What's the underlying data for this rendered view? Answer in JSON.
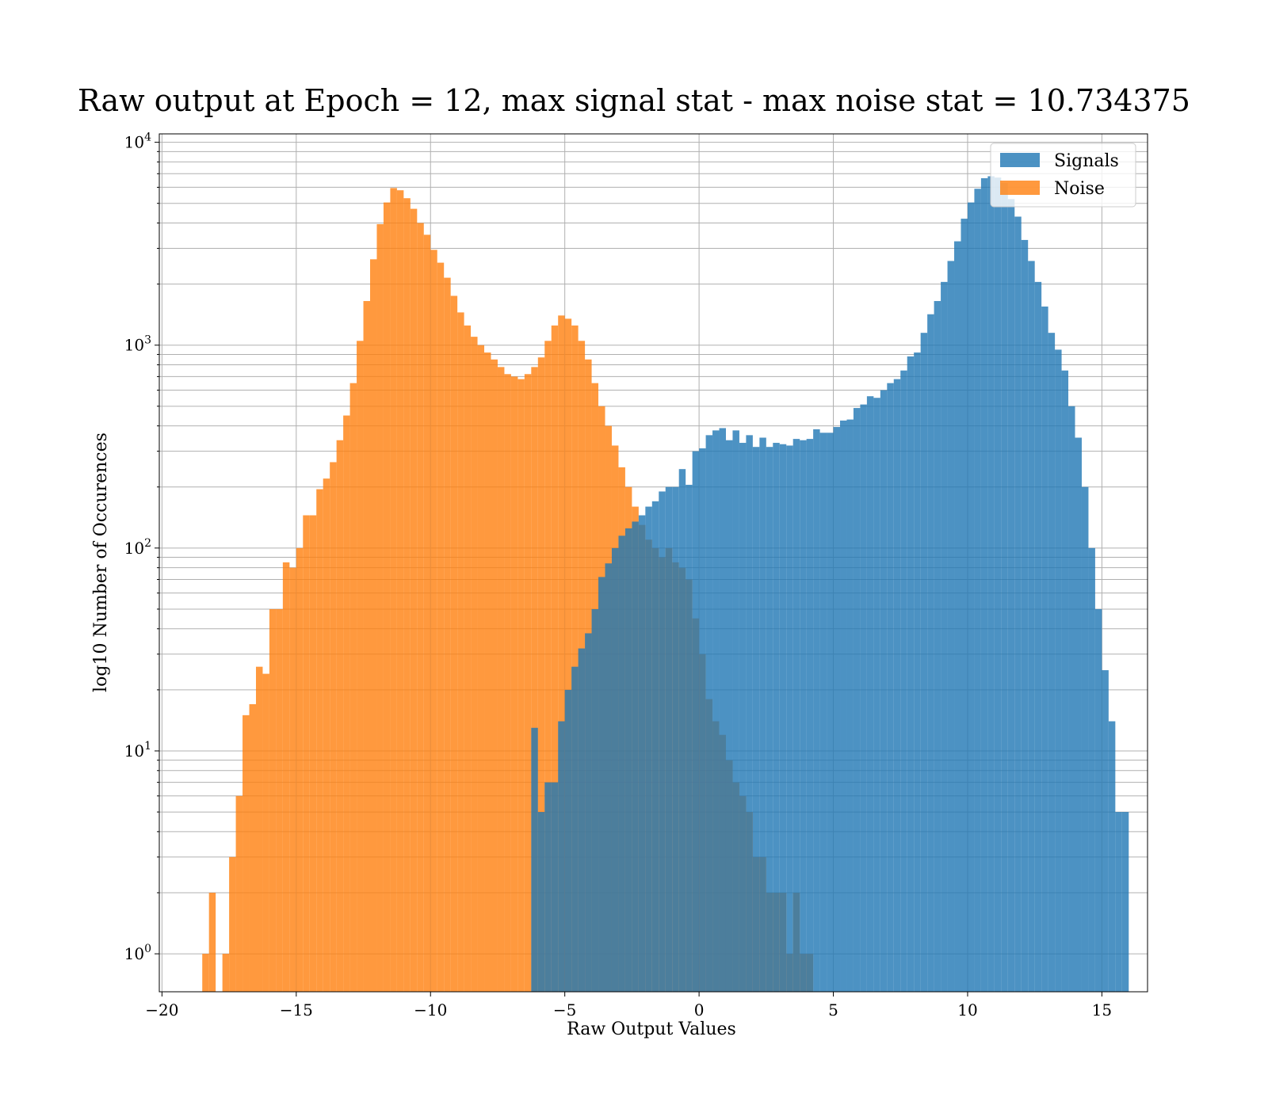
{
  "chart_data": {
    "type": "bar",
    "title": "Raw output at Epoch = 12, max signal stat - max noise stat = 10.734375",
    "xlabel": "Raw Output Values",
    "ylabel": "log10 Number of Occurences",
    "xlim": [
      -20.1,
      16.7
    ],
    "ylim": [
      0.65,
      11000
    ],
    "yscale": "log",
    "grid": true,
    "legend_position": "top-right",
    "x_ticks": [
      -20,
      -15,
      -10,
      -5,
      0,
      5,
      10,
      15
    ],
    "x_tick_labels": [
      "−20",
      "−15",
      "−10",
      "−5",
      "0",
      "5",
      "10",
      "15"
    ],
    "y_ticks": [
      1,
      10,
      100,
      1000,
      10000
    ],
    "y_tick_labels": [
      {
        "base": "10",
        "exp": "0"
      },
      {
        "base": "10",
        "exp": "1"
      },
      {
        "base": "10",
        "exp": "2"
      },
      {
        "base": "10",
        "exp": "3"
      },
      {
        "base": "10",
        "exp": "4"
      }
    ],
    "series": [
      {
        "name": "Noise",
        "color": "#ff7f0e",
        "bin_start": -18.5,
        "bin_width": 0.25,
        "counts": [
          1,
          2,
          0,
          1,
          3,
          6,
          15,
          17,
          26,
          24,
          50,
          50,
          85,
          80,
          100,
          145,
          145,
          195,
          220,
          265,
          340,
          450,
          650,
          1050,
          1650,
          2650,
          3950,
          5050,
          5950,
          5800,
          5300,
          4700,
          4000,
          3500,
          2950,
          2550,
          2150,
          1750,
          1450,
          1250,
          1100,
          1000,
          920,
          850,
          780,
          720,
          700,
          680,
          720,
          780,
          870,
          1050,
          1250,
          1400,
          1350,
          1250,
          1050,
          850,
          650,
          500,
          400,
          320,
          250,
          200,
          160,
          130,
          110,
          100,
          90,
          100,
          85,
          80,
          70,
          45,
          30,
          18,
          14,
          12,
          9,
          7,
          6,
          5,
          3,
          3,
          2,
          2,
          2,
          1,
          2,
          1,
          1
        ]
      },
      {
        "name": "Signals",
        "color": "#1f77b4",
        "bin_start": -6.5,
        "bin_width": 0.25,
        "counts": [
          0,
          13,
          5,
          7,
          7,
          14,
          20,
          26,
          32,
          38,
          50,
          72,
          84,
          100,
          115,
          125,
          135,
          145,
          160,
          170,
          190,
          200,
          200,
          245,
          205,
          300,
          310,
          360,
          380,
          390,
          340,
          380,
          330,
          360,
          315,
          350,
          315,
          330,
          325,
          320,
          345,
          340,
          345,
          385,
          370,
          370,
          395,
          425,
          430,
          490,
          510,
          560,
          550,
          600,
          650,
          680,
          750,
          880,
          920,
          1150,
          1420,
          1650,
          2050,
          2600,
          3250,
          4200,
          5050,
          5900,
          6650,
          6800,
          6700,
          6300,
          5250,
          4300,
          3300,
          2600,
          2050,
          1550,
          1150,
          950,
          750,
          500,
          350,
          200,
          100,
          50,
          25,
          14,
          5,
          5
        ]
      }
    ]
  }
}
